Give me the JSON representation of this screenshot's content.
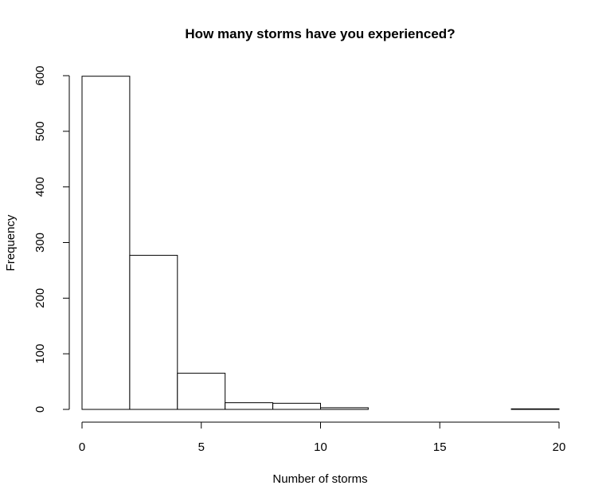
{
  "chart_data": {
    "type": "bar",
    "subtype": "histogram",
    "title": "How many storms have you experienced?",
    "xlabel": "Number of storms",
    "ylabel": "Frequency",
    "bins": [
      {
        "start": 0,
        "end": 2,
        "value": 599
      },
      {
        "start": 2,
        "end": 4,
        "value": 277
      },
      {
        "start": 4,
        "end": 6,
        "value": 65
      },
      {
        "start": 6,
        "end": 8,
        "value": 12
      },
      {
        "start": 8,
        "end": 10,
        "value": 11
      },
      {
        "start": 10,
        "end": 12,
        "value": 3
      },
      {
        "start": 12,
        "end": 14,
        "value": 0
      },
      {
        "start": 14,
        "end": 16,
        "value": 0
      },
      {
        "start": 16,
        "end": 18,
        "value": 0
      },
      {
        "start": 18,
        "end": 20,
        "value": 1
      }
    ],
    "xlim": [
      0,
      20
    ],
    "ylim": [
      0,
      600
    ],
    "xticks": [
      0,
      5,
      10,
      15,
      20
    ],
    "yticks": [
      0,
      100,
      200,
      300,
      400,
      500,
      600
    ],
    "grid": false,
    "legend": "none",
    "bar_fill": "#ffffff",
    "bar_stroke": "#000000"
  }
}
